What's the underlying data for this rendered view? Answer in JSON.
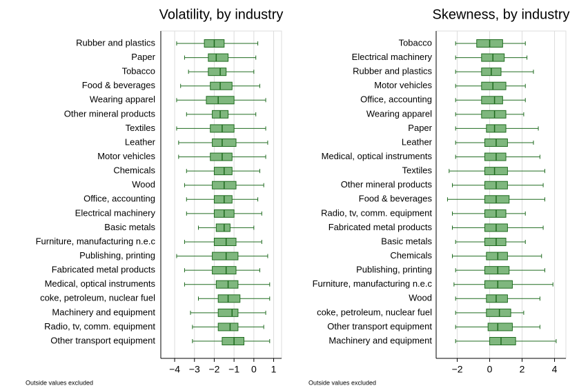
{
  "chart_data": [
    {
      "type": "box",
      "title": "Volatility, by industry",
      "note": "Outside values excluded",
      "color": "#7fb77e",
      "edge_color": "#1f6b1f",
      "grid": true,
      "categories": [
        "Rubber and plastics",
        "Paper",
        "Tobacco",
        "Food & beverages",
        "Wearing apparel",
        "Other mineral products",
        "Textiles",
        "Leather",
        "Motor vehicles",
        "Chemicals",
        "Wood",
        "Office, accounting",
        "Electrical machinery",
        "Basic metals",
        "Furniture, manufacturing n.e.c",
        "Publishing, printing",
        "Fabricated metal products",
        "Medical, optical instruments",
        "coke, petroleum, nuclear fuel",
        "Machinery and equipment",
        "Radio, tv, comm. equipment",
        "Other transport equipment"
      ],
      "whisker_low": [
        -3.9,
        -3.5,
        -3.3,
        -3.7,
        -3.9,
        -3.4,
        -3.9,
        -3.8,
        -3.8,
        -3.4,
        -3.5,
        -3.4,
        -3.4,
        -2.8,
        -3.5,
        -3.9,
        -3.5,
        -3.5,
        -2.8,
        -3.2,
        -3.1,
        -3.1
      ],
      "q1": [
        -2.5,
        -2.3,
        -2.3,
        -2.2,
        -2.4,
        -2.1,
        -2.2,
        -2.1,
        -2.2,
        -2.0,
        -2.1,
        -2.0,
        -2.0,
        -1.9,
        -2.0,
        -2.1,
        -2.1,
        -1.9,
        -1.8,
        -1.8,
        -1.8,
        -1.6
      ],
      "median": [
        -2.0,
        -1.9,
        -1.7,
        -1.7,
        -1.8,
        -1.7,
        -1.6,
        -1.6,
        -1.6,
        -1.5,
        -1.5,
        -1.5,
        -1.5,
        -1.5,
        -1.4,
        -1.4,
        -1.4,
        -1.3,
        -1.3,
        -1.1,
        -1.2,
        -1.0
      ],
      "q3": [
        -1.5,
        -1.3,
        -1.4,
        -1.1,
        -1.0,
        -1.3,
        -1.0,
        -0.9,
        -1.1,
        -1.1,
        -0.9,
        -1.1,
        -1.0,
        -1.2,
        -0.9,
        -0.8,
        -0.9,
        -0.8,
        -0.7,
        -0.8,
        -0.8,
        -0.5
      ],
      "whisker_high": [
        0.2,
        0.1,
        0.0,
        0.3,
        0.6,
        0.1,
        0.6,
        0.7,
        0.6,
        0.3,
        0.5,
        0.2,
        0.4,
        0.0,
        0.4,
        0.7,
        0.3,
        0.8,
        0.8,
        0.6,
        0.5,
        0.8
      ],
      "xlim": [
        -4.7,
        1.4
      ],
      "xticks": [
        {
          "value": -4,
          "label": "−4"
        },
        {
          "value": -3,
          "label": "−3"
        },
        {
          "value": -2,
          "label": "−2"
        },
        {
          "value": -1,
          "label": "−1"
        },
        0,
        1
      ]
    },
    {
      "type": "box",
      "title": "Skewness, by industry",
      "note": "Outside values excluded",
      "color": "#7fb77e",
      "edge_color": "#1f6b1f",
      "grid": true,
      "categories": [
        "Tobacco",
        "Electrical machinery",
        "Rubber and plastics",
        "Motor vehicles",
        "Office, accounting",
        "Wearing apparel",
        "Paper",
        "Leather",
        "Medical, optical instruments",
        "Textiles",
        "Other mineral products",
        "Food & beverages",
        "Radio, tv, comm. equipment",
        "Fabricated metal products",
        "Basic metals",
        "Chemicals",
        "Publishing, printing",
        "Furniture, manufacturing n.e.c",
        "Wood",
        "coke, petroleum, nuclear fuel",
        "Other transport equipment",
        "Machinery and equipment"
      ],
      "whisker_low": [
        -2.1,
        -2.1,
        -2.1,
        -2.1,
        -2.1,
        -2.1,
        -2.1,
        -2.1,
        -2.1,
        -2.5,
        -2.3,
        -2.6,
        -2.3,
        -2.3,
        -2.1,
        -2.3,
        -2.1,
        -2.2,
        -2.1,
        -2.1,
        -2.1,
        -2.1
      ],
      "q1": [
        -0.8,
        -0.5,
        -0.5,
        -0.5,
        -0.5,
        -0.5,
        -0.2,
        -0.3,
        -0.3,
        -0.3,
        -0.3,
        -0.3,
        -0.3,
        -0.3,
        -0.3,
        -0.2,
        -0.3,
        -0.3,
        -0.2,
        -0.2,
        -0.1,
        0.0
      ],
      "median": [
        0.0,
        0.2,
        0.1,
        0.2,
        0.3,
        0.3,
        0.3,
        0.4,
        0.4,
        0.3,
        0.4,
        0.4,
        0.4,
        0.4,
        0.4,
        0.5,
        0.5,
        0.5,
        0.4,
        0.6,
        0.5,
        0.7
      ],
      "q3": [
        0.8,
        0.9,
        0.7,
        1.0,
        0.8,
        1.0,
        1.0,
        1.1,
        1.0,
        1.1,
        1.1,
        1.2,
        1.0,
        1.1,
        1.0,
        1.1,
        1.2,
        1.4,
        1.1,
        1.3,
        1.4,
        1.6
      ],
      "whisker_high": [
        2.2,
        2.3,
        2.7,
        2.2,
        2.2,
        2.1,
        3.0,
        2.7,
        3.1,
        3.4,
        3.3,
        3.4,
        2.2,
        3.3,
        2.2,
        3.2,
        3.4,
        3.9,
        3.1,
        2.1,
        3.1,
        4.1
      ],
      "xlim": [
        -3.3,
        4.7
      ],
      "xticks": [
        {
          "value": -2,
          "label": "−2"
        },
        0,
        2,
        4
      ]
    }
  ]
}
